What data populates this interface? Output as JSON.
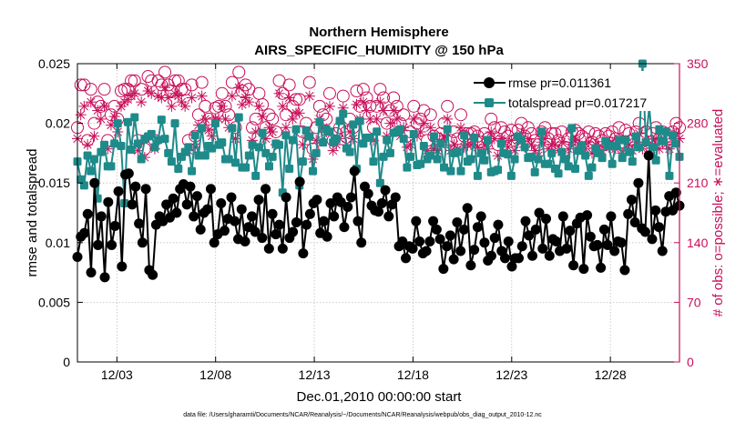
{
  "chart_data": {
    "type": "line",
    "title_line1": "Northern Hemisphere",
    "title_line2": "AIRS_SPECIFIC_HUMIDITY @ 150 hPa",
    "xlabel": "Dec.01,2010 00:00:00 start",
    "ylabel_left": "rmse and totalspread",
    "ylabel_right": "# of obs: o=possible; ∗=evaluated",
    "footer": "data file: /Users/gharamti/Documents/NCAR/Reanalysis/~/Documents/NCAR/Reanalysis/webpub/obs_diag_output_2010-12.nc",
    "xlim": [
      1,
      31.5
    ],
    "ylim_left": [
      0,
      0.025
    ],
    "ylim_right": [
      0,
      350
    ],
    "x_ticks": [
      3,
      8,
      13,
      18,
      23,
      28
    ],
    "x_tick_labels": [
      "12/03",
      "12/08",
      "12/13",
      "12/18",
      "12/23",
      "12/28"
    ],
    "y_left_ticks": [
      0,
      0.005,
      0.01,
      0.015,
      0.02,
      0.025
    ],
    "y_left_tick_labels": [
      "0",
      "0.005",
      "0.01",
      "0.015",
      "0.02",
      "0.025"
    ],
    "y_right_ticks": [
      0,
      70,
      140,
      210,
      280,
      350
    ],
    "y_right_tick_labels": [
      "0",
      "70",
      "140",
      "210",
      "280",
      "350"
    ],
    "colors": {
      "rmse": "#000000",
      "spread": "#1f8a8a",
      "obs": "#c8105a",
      "grid": "#bfbfbf"
    },
    "series": [
      {
        "name": "rmse",
        "legend": "rmse pr=0.011361",
        "color": "#000000",
        "marker": "circle",
        "values": [
          0.0088,
          0.0105,
          0.0108,
          0.0124,
          0.0075,
          0.015,
          0.0098,
          0.0122,
          0.0071,
          0.0134,
          0.0098,
          0.0114,
          0.0143,
          0.008,
          0.0157,
          0.0158,
          0.0132,
          0.0147,
          0.0116,
          0.01,
          0.0145,
          0.0077,
          0.0073,
          0.0115,
          0.0122,
          0.0118,
          0.0132,
          0.0121,
          0.0137,
          0.0125,
          0.0145,
          0.0149,
          0.0132,
          0.0147,
          0.0122,
          0.0139,
          0.0111,
          0.0125,
          0.0128,
          0.0145,
          0.01,
          0.0107,
          0.0133,
          0.011,
          0.012,
          0.0138,
          0.0118,
          0.0103,
          0.0128,
          0.0101,
          0.0113,
          0.0122,
          0.0109,
          0.0136,
          0.0104,
          0.0145,
          0.0095,
          0.0124,
          0.0107,
          0.0115,
          0.0095,
          0.0138,
          0.0104,
          0.0109,
          0.0117,
          0.0151,
          0.0091,
          0.0115,
          0.0124,
          0.0133,
          0.0136,
          0.0108,
          0.0118,
          0.0105,
          0.0133,
          0.0122,
          0.0138,
          0.0134,
          0.0113,
          0.013,
          0.0138,
          0.016,
          0.0118,
          0.01,
          0.0147,
          0.0141,
          0.0131,
          0.0127,
          0.0126,
          0.0133,
          0.0144,
          0.0122,
          0.0132,
          0.0138,
          0.0097,
          0.0101,
          0.0087,
          0.0097,
          0.0095,
          0.0118,
          0.0101,
          0.0091,
          0.0093,
          0.0101,
          0.0118,
          0.0111,
          0.0103,
          0.0078,
          0.0097,
          0.0106,
          0.0086,
          0.0117,
          0.0093,
          0.0111,
          0.0129,
          0.0081,
          0.0094,
          0.0113,
          0.0122,
          0.01,
          0.0085,
          0.0089,
          0.0104,
          0.0115,
          0.0093,
          0.0087,
          0.0101,
          0.008,
          0.0087,
          0.0087,
          0.0097,
          0.0118,
          0.0106,
          0.0089,
          0.0111,
          0.0125,
          0.0095,
          0.012,
          0.0089,
          0.0103,
          0.0101,
          0.0093,
          0.0122,
          0.0095,
          0.011,
          0.0081,
          0.0116,
          0.0121,
          0.0078,
          0.0123,
          0.0105,
          0.0097,
          0.0098,
          0.0079,
          0.0111,
          0.0098,
          0.0122,
          0.0093,
          0.0101,
          0.01,
          0.0077,
          0.0124,
          0.0136,
          0.0117,
          0.015,
          0.0112,
          0.0109,
          0.0173,
          0.0103,
          0.0127,
          0.0113,
          0.0093,
          0.0126,
          0.0139,
          0.0127,
          0.0142,
          0.0131
        ]
      },
      {
        "name": "totalspread",
        "legend": "totalspread pr=0.017217",
        "color": "#1f8a8a",
        "marker": "square",
        "values": [
          0.0168,
          0.0153,
          0.0148,
          0.0173,
          0.016,
          0.017,
          0.0137,
          0.0176,
          0.0182,
          0.0164,
          0.0164,
          0.0183,
          0.02,
          0.0181,
          0.0133,
          0.0201,
          0.0178,
          0.0205,
          0.0183,
          0.017,
          0.0187,
          0.0189,
          0.0191,
          0.018,
          0.0186,
          0.0203,
          0.0187,
          0.0175,
          0.0168,
          0.02,
          0.0162,
          0.0172,
          0.0176,
          0.018,
          0.016,
          0.019,
          0.0173,
          0.0196,
          0.0173,
          0.0181,
          0.0179,
          0.02,
          0.0182,
          0.0184,
          0.017,
          0.017,
          0.0196,
          0.0167,
          0.0205,
          0.0163,
          0.0163,
          0.0173,
          0.0182,
          0.0156,
          0.018,
          0.0192,
          0.0175,
          0.0164,
          0.0172,
          0.0183,
          0.0182,
          0.0142,
          0.019,
          0.0162,
          0.0186,
          0.0195,
          0.0148,
          0.0168,
          0.0194,
          0.0189,
          0.016,
          0.0175,
          0.0201,
          0.0184,
          0.0195,
          0.0193,
          0.0184,
          0.0187,
          0.0202,
          0.0208,
          0.0179,
          0.0176,
          0.0199,
          0.0162,
          0.0202,
          0.0183,
          0.0188,
          0.0188,
          0.0168,
          0.0193,
          0.015,
          0.0172,
          0.0186,
          0.0175,
          0.0192,
          0.0193,
          0.0195,
          0.0187,
          0.0163,
          0.0172,
          0.0191,
          0.0165,
          0.0166,
          0.0181,
          0.017,
          0.0173,
          0.0189,
          0.017,
          0.0183,
          0.0163,
          0.0195,
          0.016,
          0.0175,
          0.0176,
          0.016,
          0.019,
          0.0168,
          0.017,
          0.0188,
          0.0156,
          0.0175,
          0.0169,
          0.0186,
          0.0159,
          0.016,
          0.0161,
          0.0183,
          0.0175,
          0.0174,
          0.0156,
          0.017,
          0.0189,
          0.0186,
          0.018,
          0.0171,
          0.0172,
          0.0159,
          0.017,
          0.0193,
          0.0166,
          0.0166,
          0.0175,
          0.0162,
          0.0158,
          0.0176,
          0.017,
          0.0164,
          0.0196,
          0.0162,
          0.0177,
          0.0181,
          0.0173,
          0.0156,
          0.0163,
          0.0179,
          0.0175,
          0.0171,
          0.0185,
          0.0181,
          0.0166,
          0.0181,
          0.0186,
          0.0171,
          0.0186,
          0.0176,
          0.0168,
          0.0189,
          0.018,
          0.025,
          0.0184,
          0.0214,
          0.018,
          0.0169,
          0.0195,
          0.0185,
          0.0193,
          0.0156,
          0.019,
          0.0183,
          0.0172
        ]
      },
      {
        "name": "obs_possible",
        "color": "#c8105a",
        "marker": "circle-open",
        "values": [
          275,
          325,
          325,
          260,
          320,
          280,
          305,
          300,
          320,
          260,
          290,
          300,
          285,
          318,
          320,
          320,
          330,
          330,
          260,
          320,
          250,
          335,
          330,
          260,
          330,
          325,
          340,
          325,
          318,
          330,
          330,
          320,
          320,
          260,
          325,
          265,
          290,
          328,
          300,
          285,
          280,
          298,
          300,
          315,
          300,
          290,
          328,
          275,
          340,
          318,
          325,
          320,
          275,
          285,
          315,
          302,
          275,
          290,
          285,
          270,
          330,
          315,
          290,
          325,
          300,
          308,
          308,
          270,
          280,
          328,
          250,
          275,
          300,
          290,
          285,
          315,
          260,
          268,
          275,
          312,
          270,
          285,
          275,
          318,
          300,
          320,
          310,
          300,
          275,
          300,
          320,
          310,
          280,
          295,
          310,
          300,
          280,
          290,
          265,
          270,
          300,
          280,
          285,
          295,
          260,
          290,
          265,
          262,
          268,
          280,
          300,
          260,
          270,
          262,
          290,
          265,
          268,
          268,
          270,
          265,
          258,
          268,
          262,
          285,
          275,
          255,
          275,
          270,
          265,
          272,
          260,
          272,
          280,
          265,
          275,
          268,
          260,
          255,
          270,
          275,
          262,
          268,
          268,
          260,
          270,
          252,
          262,
          270,
          272,
          268,
          265,
          262,
          270,
          258,
          268,
          265,
          260,
          268,
          265,
          270,
          262,
          275,
          258,
          272,
          268,
          260,
          270,
          280,
          262,
          270,
          258,
          268,
          275,
          262,
          270,
          268,
          262,
          270,
          280,
          275
        ]
      },
      {
        "name": "obs_evaluated",
        "color": "#c8105a",
        "marker": "asterisk",
        "values": [
          262,
          290,
          300,
          255,
          305,
          265,
          295,
          285,
          300,
          250,
          278,
          288,
          270,
          300,
          305,
          308,
          312,
          315,
          248,
          305,
          240,
          318,
          315,
          250,
          312,
          310,
          322,
          310,
          300,
          315,
          312,
          305,
          300,
          248,
          310,
          252,
          278,
          312,
          285,
          272,
          265,
          285,
          285,
          300,
          285,
          275,
          312,
          262,
          322,
          302,
          310,
          305,
          260,
          270,
          300,
          288,
          262,
          275,
          270,
          255,
          315,
          300,
          275,
          310,
          285,
          292,
          292,
          255,
          265,
          312,
          238,
          260,
          285,
          275,
          270,
          300,
          248,
          255,
          262,
          298,
          255,
          270,
          262,
          302,
          285,
          305,
          295,
          285,
          260,
          285,
          305,
          295,
          265,
          280,
          295,
          285,
          265,
          275,
          252,
          255,
          285,
          265,
          270,
          280,
          248,
          275,
          250,
          248,
          255,
          265,
          285,
          248,
          255,
          250,
          275,
          252,
          255,
          255,
          258,
          252,
          245,
          255,
          250,
          270,
          262,
          242,
          262,
          258,
          252,
          260,
          248,
          260,
          268,
          252,
          262,
          255,
          248,
          242,
          258,
          262,
          250,
          255,
          255,
          248,
          258,
          240,
          250,
          258,
          260,
          255,
          252,
          250,
          258,
          245,
          255,
          252,
          248,
          255,
          252,
          258,
          250,
          262,
          245,
          260,
          255,
          248,
          258,
          268,
          250,
          258,
          245,
          255,
          262,
          250,
          258,
          255,
          250,
          258,
          268,
          262
        ]
      }
    ]
  }
}
